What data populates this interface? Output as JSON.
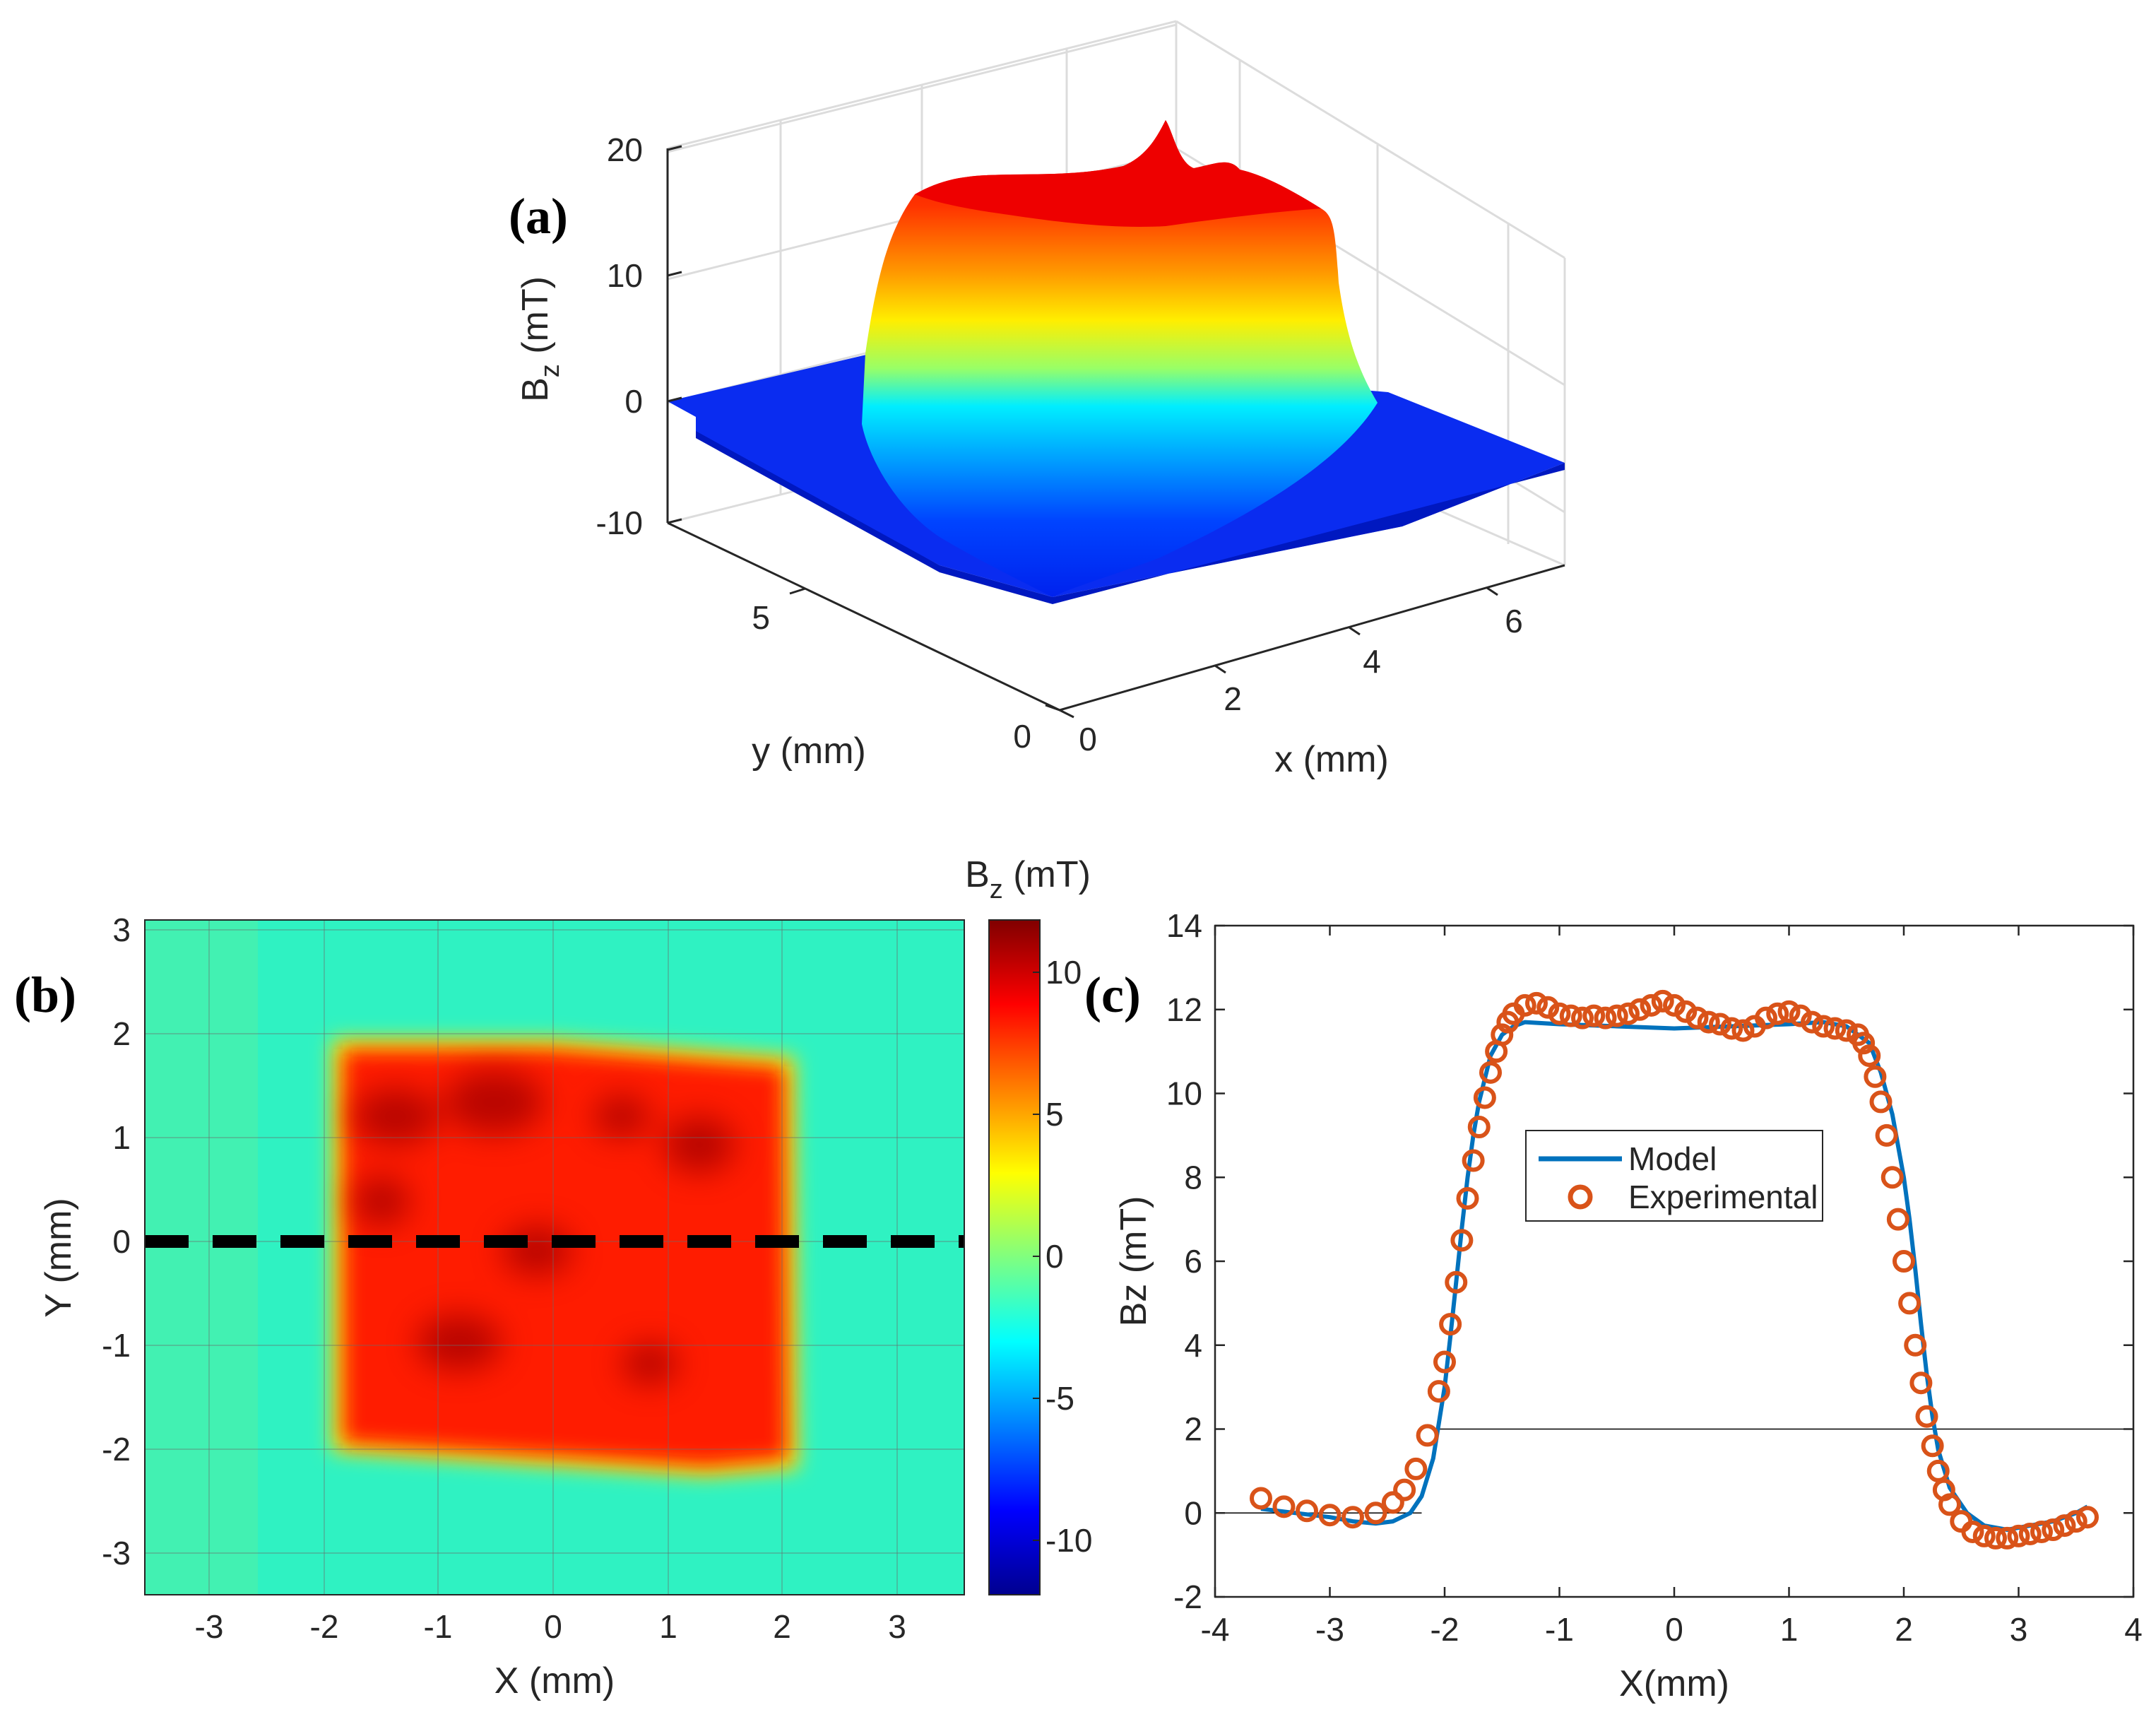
{
  "chart_data": [
    {
      "panel": "a",
      "type": "surface3d",
      "panel_label": "(a)",
      "zlabel_main": "B",
      "zlabel_sub": "z",
      "zlabel_unit": " (mT)",
      "xlabel": "x (mm)",
      "ylabel": "y (mm)",
      "zticks": [
        "20",
        "10",
        "0",
        "-10"
      ],
      "xticks": [
        "0",
        "2",
        "4",
        "6"
      ],
      "yticks": [
        "0",
        "5"
      ],
      "zlim": [
        -10,
        20
      ],
      "xlim": [
        0,
        7
      ],
      "ylim": [
        0,
        7
      ],
      "plateau_mT": 17,
      "peak_mT": 22,
      "background_mT": -3,
      "colormap": "jet"
    },
    {
      "panel": "b",
      "type": "heatmap",
      "panel_label": "(b)",
      "xlabel": "X (mm)",
      "ylabel": "Y (mm)",
      "xticks": [
        "-3",
        "-2",
        "-1",
        "0",
        "1",
        "2",
        "3"
      ],
      "yticks": [
        "3",
        "2",
        "1",
        "0",
        "-1",
        "-2",
        "-3"
      ],
      "xlim": [
        -3.6,
        3.6
      ],
      "ylim": [
        -3.4,
        3.1
      ],
      "colorbar_title_main": "B",
      "colorbar_title_sub": "z",
      "colorbar_title_unit": " (mT)",
      "colorbar_ticks": [
        "10",
        "5",
        "0",
        "-5",
        "-10"
      ],
      "clim": [
        -12,
        12
      ],
      "square_extent_mm": {
        "x": [
          -2.0,
          2.1
        ],
        "y": [
          -2.1,
          1.9
        ]
      },
      "inside_value_mT": 10,
      "outside_value_mT": -1.5,
      "cut_line_y_mm": 0,
      "colormap": "jet"
    },
    {
      "panel": "c",
      "type": "line",
      "panel_label": "(c)",
      "xlabel": "X(mm)",
      "ylabel": "Bz (mT)",
      "xlim": [
        -4,
        4
      ],
      "ylim": [
        -2,
        14
      ],
      "xticks": [
        "-4",
        "-3",
        "-2",
        "-1",
        "0",
        "1",
        "2",
        "3",
        "4"
      ],
      "yticks": [
        "14",
        "12",
        "10",
        "8",
        "6",
        "4",
        "2",
        "0",
        "-2"
      ],
      "legend": [
        "Model",
        "Experimental"
      ],
      "series": [
        {
          "name": "Model",
          "style": "line",
          "color": "#0072BD",
          "x": [
            -3.6,
            -3.3,
            -3.0,
            -2.8,
            -2.6,
            -2.45,
            -2.3,
            -2.2,
            -2.1,
            -2.0,
            -1.95,
            -1.9,
            -1.85,
            -1.8,
            -1.75,
            -1.7,
            -1.6,
            -1.5,
            -1.4,
            -1.3,
            -1.0,
            -0.5,
            0.0,
            0.5,
            1.0,
            1.3,
            1.5,
            1.7,
            1.8,
            1.9,
            2.0,
            2.05,
            2.1,
            2.15,
            2.2,
            2.25,
            2.3,
            2.4,
            2.55,
            2.7,
            2.9,
            3.1,
            3.3,
            3.5,
            3.6
          ],
          "y": [
            0.1,
            0.0,
            -0.1,
            -0.2,
            -0.25,
            -0.2,
            0.0,
            0.4,
            1.3,
            3.0,
            4.2,
            5.5,
            6.8,
            8.0,
            9.0,
            9.8,
            10.9,
            11.4,
            11.6,
            11.7,
            11.65,
            11.6,
            11.55,
            11.6,
            11.65,
            11.7,
            11.6,
            11.2,
            10.5,
            9.5,
            8.0,
            7.0,
            5.8,
            4.5,
            3.3,
            2.3,
            1.5,
            0.6,
            0.0,
            -0.3,
            -0.4,
            -0.3,
            -0.2,
            0.0,
            0.15
          ]
        },
        {
          "name": "Experimental",
          "style": "markers",
          "marker": "circle-open",
          "color": "#D95319",
          "x": [
            -3.6,
            -3.4,
            -3.2,
            -3.0,
            -2.8,
            -2.6,
            -2.45,
            -2.35,
            -2.25,
            -2.15,
            -2.05,
            -2.0,
            -1.95,
            -1.9,
            -1.85,
            -1.8,
            -1.75,
            -1.7,
            -1.65,
            -1.6,
            -1.55,
            -1.5,
            -1.45,
            -1.4,
            -1.3,
            -1.2,
            -1.1,
            -1.0,
            -0.9,
            -0.8,
            -0.7,
            -0.6,
            -0.5,
            -0.4,
            -0.3,
            -0.2,
            -0.1,
            0.0,
            0.1,
            0.2,
            0.3,
            0.4,
            0.5,
            0.6,
            0.7,
            0.8,
            0.9,
            1.0,
            1.1,
            1.2,
            1.3,
            1.4,
            1.5,
            1.6,
            1.65,
            1.7,
            1.75,
            1.8,
            1.85,
            1.9,
            1.95,
            2.0,
            2.05,
            2.1,
            2.15,
            2.2,
            2.25,
            2.3,
            2.35,
            2.4,
            2.5,
            2.6,
            2.7,
            2.8,
            2.9,
            3.0,
            3.1,
            3.2,
            3.3,
            3.4,
            3.5,
            3.6
          ],
          "y": [
            0.35,
            0.15,
            0.05,
            -0.05,
            -0.1,
            0.0,
            0.25,
            0.55,
            1.05,
            1.85,
            2.9,
            3.6,
            4.5,
            5.5,
            6.5,
            7.5,
            8.4,
            9.2,
            9.9,
            10.5,
            11.0,
            11.4,
            11.7,
            11.9,
            12.1,
            12.15,
            12.05,
            11.9,
            11.85,
            11.8,
            11.85,
            11.8,
            11.85,
            11.9,
            12.0,
            12.1,
            12.2,
            12.1,
            11.95,
            11.8,
            11.7,
            11.65,
            11.55,
            11.5,
            11.6,
            11.8,
            11.9,
            11.95,
            11.85,
            11.7,
            11.6,
            11.55,
            11.5,
            11.4,
            11.2,
            10.9,
            10.4,
            9.8,
            9.0,
            8.0,
            7.0,
            6.0,
            5.0,
            4.0,
            3.1,
            2.3,
            1.6,
            1.0,
            0.55,
            0.2,
            -0.2,
            -0.45,
            -0.55,
            -0.6,
            -0.6,
            -0.55,
            -0.5,
            -0.45,
            -0.4,
            -0.3,
            -0.2,
            -0.1
          ]
        }
      ],
      "reference_lines": [
        {
          "y": 2,
          "x": [
            -2.1,
            4
          ],
          "color": "#000000"
        },
        {
          "y": 0,
          "x": [
            -4,
            -2.2
          ],
          "color": "#000000"
        }
      ]
    }
  ]
}
